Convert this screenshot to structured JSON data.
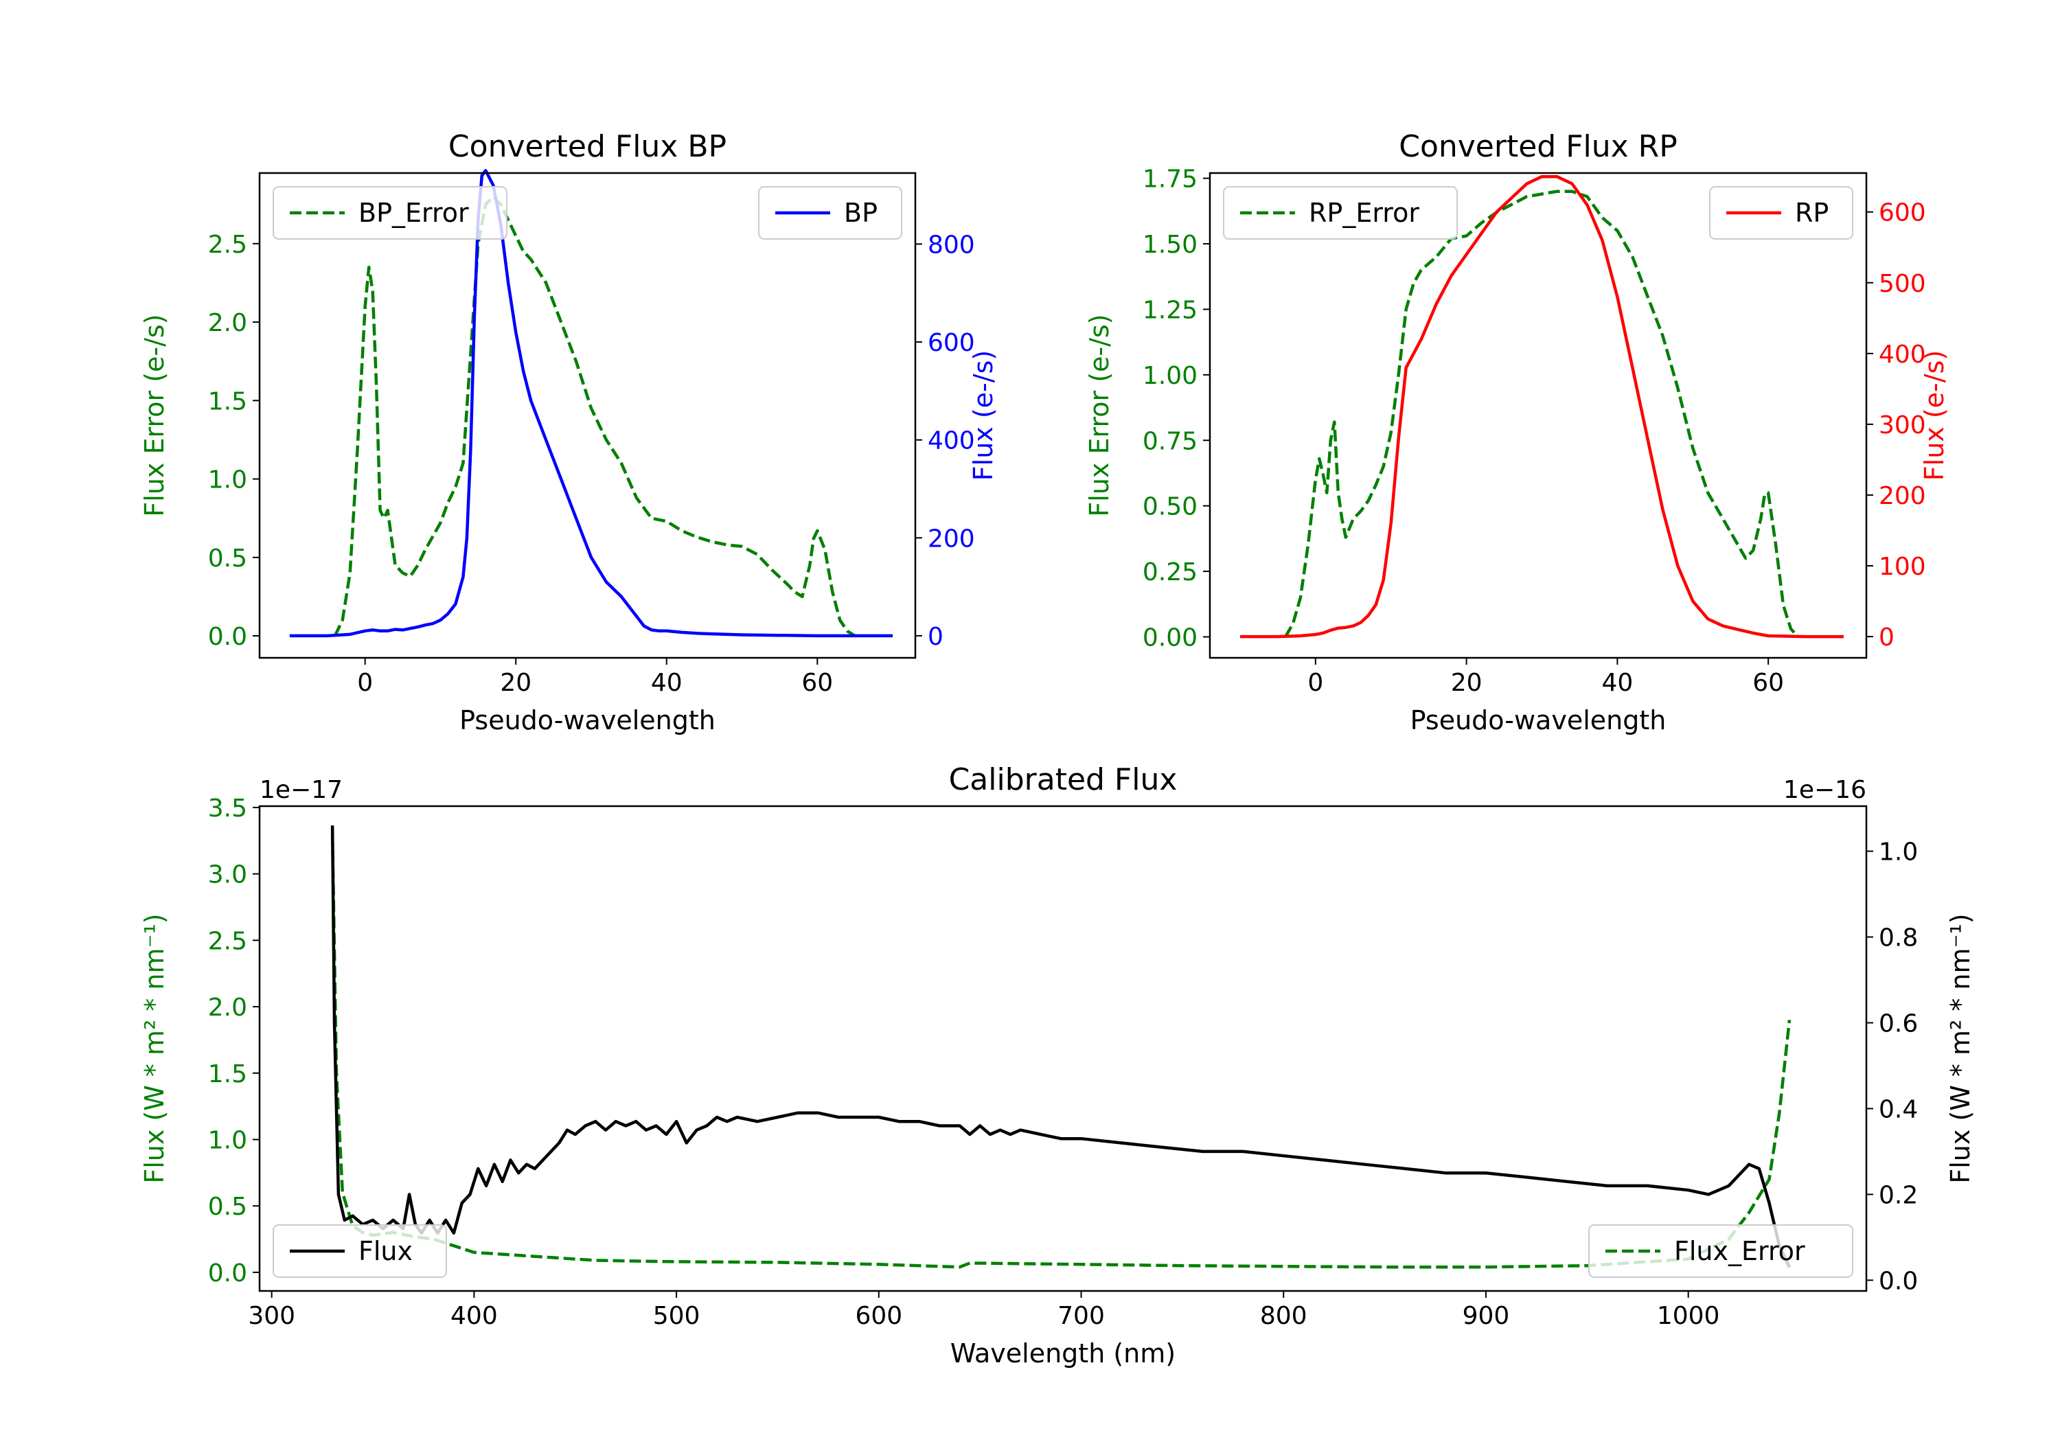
{
  "chart_data": [
    {
      "id": "bp",
      "type": "line",
      "title": "Converted Flux BP",
      "xlabel": "Pseudo-wavelength",
      "xlim": [
        -14,
        73
      ],
      "xticks": [
        0,
        20,
        40,
        60
      ],
      "left_axis": {
        "label": "Flux Error (e-/s)",
        "color": "#008000",
        "ylim": [
          -0.14,
          2.95
        ],
        "ticks": [
          0.0,
          0.5,
          1.0,
          1.5,
          2.0,
          2.5
        ],
        "tick_labels": [
          "0.0",
          "0.5",
          "1.0",
          "1.5",
          "2.0",
          "2.5"
        ]
      },
      "right_axis": {
        "label": "Flux (e-/s)",
        "color": "#0000ff",
        "ylim": [
          -45,
          945
        ],
        "ticks": [
          0,
          200,
          400,
          600,
          800
        ],
        "tick_labels": [
          "0",
          "200",
          "400",
          "600",
          "800"
        ]
      },
      "series": [
        {
          "name": "BP_Error",
          "axis": "left",
          "color": "#008000",
          "dash": true,
          "x": [
            -4,
            -3,
            -2,
            -1,
            0,
            0.5,
            1,
            1.5,
            2,
            2.5,
            3,
            4,
            5,
            6,
            7,
            8,
            10,
            11,
            12,
            13,
            14,
            15,
            16,
            17,
            18,
            19,
            20,
            21,
            22,
            24,
            26,
            28,
            30,
            32,
            34,
            36,
            38,
            40,
            42,
            44,
            46,
            48,
            50,
            52,
            54,
            56,
            57,
            58,
            59,
            59.5,
            60,
            61,
            62,
            63,
            64,
            65
          ],
          "y": [
            0.0,
            0.1,
            0.4,
            1.2,
            2.1,
            2.35,
            2.2,
            1.6,
            0.8,
            0.75,
            0.8,
            0.45,
            0.4,
            0.38,
            0.45,
            0.55,
            0.72,
            0.85,
            0.95,
            1.1,
            1.8,
            2.5,
            2.75,
            2.8,
            2.75,
            2.65,
            2.55,
            2.45,
            2.4,
            2.25,
            2.0,
            1.75,
            1.45,
            1.25,
            1.1,
            0.88,
            0.75,
            0.73,
            0.67,
            0.63,
            0.6,
            0.58,
            0.57,
            0.52,
            0.42,
            0.33,
            0.28,
            0.25,
            0.45,
            0.62,
            0.67,
            0.55,
            0.28,
            0.1,
            0.03,
            0.0
          ]
        },
        {
          "name": "BP",
          "axis": "right",
          "color": "#0000ff",
          "dash": false,
          "x": [
            -10,
            -5,
            -2,
            0,
            1,
            2,
            3,
            4,
            5,
            6,
            7,
            8,
            9,
            10,
            11,
            12,
            13,
            13.5,
            14,
            14.5,
            15,
            15.5,
            16,
            17,
            18,
            19,
            20,
            21,
            22,
            23,
            24,
            25,
            26,
            28,
            30,
            32,
            34,
            36,
            37,
            38,
            39,
            40,
            42,
            44,
            46,
            50,
            55,
            60,
            65,
            70
          ],
          "y": [
            0,
            0,
            3,
            10,
            12,
            10,
            10,
            13,
            12,
            15,
            18,
            22,
            25,
            32,
            45,
            65,
            120,
            200,
            380,
            650,
            850,
            940,
            950,
            920,
            840,
            720,
            620,
            540,
            480,
            440,
            400,
            360,
            320,
            240,
            160,
            110,
            80,
            40,
            20,
            12,
            10,
            10,
            7,
            5,
            4,
            2,
            1,
            0,
            0,
            0
          ]
        }
      ],
      "legends": [
        {
          "position": "upper-left",
          "entries": [
            "BP_Error"
          ]
        },
        {
          "position": "upper-right",
          "entries": [
            "BP"
          ]
        }
      ]
    },
    {
      "id": "rp",
      "type": "line",
      "title": "Converted Flux RP",
      "xlabel": "Pseudo-wavelength",
      "xlim": [
        -14,
        73
      ],
      "xticks": [
        0,
        20,
        40,
        60
      ],
      "left_axis": {
        "label": "Flux Error (e-/s)",
        "color": "#008000",
        "ylim": [
          -0.08,
          1.77
        ],
        "ticks": [
          0.0,
          0.25,
          0.5,
          0.75,
          1.0,
          1.25,
          1.5,
          1.75
        ],
        "tick_labels": [
          "0.00",
          "0.25",
          "0.50",
          "0.75",
          "1.00",
          "1.25",
          "1.50",
          "1.75"
        ]
      },
      "right_axis": {
        "label": "Flux (e-/s)",
        "color": "#ff0000",
        "ylim": [
          -30,
          655
        ],
        "ticks": [
          0,
          100,
          200,
          300,
          400,
          500,
          600
        ],
        "tick_labels": [
          "0",
          "100",
          "200",
          "300",
          "400",
          "500",
          "600"
        ]
      },
      "series": [
        {
          "name": "RP_Error",
          "axis": "left",
          "color": "#008000",
          "dash": true,
          "x": [
            -4,
            -3,
            -2,
            -1,
            0,
            0.5,
            1,
            1.5,
            2,
            2.5,
            3,
            3.5,
            4,
            5,
            6,
            7,
            8,
            9,
            10,
            11,
            12,
            13,
            14,
            16,
            18,
            20,
            22,
            24,
            26,
            28,
            30,
            32,
            34,
            36,
            38,
            40,
            42,
            44,
            46,
            48,
            50,
            52,
            54,
            56,
            57,
            58,
            59,
            59.5,
            60,
            61,
            62,
            63,
            64
          ],
          "y": [
            0.0,
            0.05,
            0.15,
            0.35,
            0.6,
            0.68,
            0.62,
            0.55,
            0.75,
            0.82,
            0.55,
            0.45,
            0.38,
            0.45,
            0.48,
            0.52,
            0.58,
            0.65,
            0.78,
            1.0,
            1.25,
            1.35,
            1.4,
            1.45,
            1.52,
            1.53,
            1.58,
            1.62,
            1.65,
            1.68,
            1.69,
            1.7,
            1.7,
            1.68,
            1.6,
            1.55,
            1.45,
            1.3,
            1.15,
            0.95,
            0.72,
            0.55,
            0.45,
            0.35,
            0.3,
            0.33,
            0.45,
            0.54,
            0.55,
            0.35,
            0.12,
            0.03,
            0.0
          ]
        },
        {
          "name": "RP",
          "axis": "right",
          "color": "#ff0000",
          "dash": false,
          "x": [
            -10,
            -5,
            -2,
            0,
            1,
            2,
            3,
            4,
            5,
            6,
            7,
            8,
            9,
            10,
            11,
            12,
            13,
            14,
            16,
            18,
            20,
            22,
            24,
            26,
            28,
            30,
            32,
            34,
            36,
            38,
            40,
            42,
            44,
            46,
            48,
            50,
            52,
            54,
            56,
            58,
            60,
            65,
            70
          ],
          "y": [
            0,
            0,
            1,
            3,
            5,
            9,
            12,
            13,
            15,
            20,
            30,
            45,
            80,
            160,
            280,
            380,
            400,
            420,
            470,
            510,
            540,
            570,
            600,
            620,
            640,
            650,
            650,
            640,
            610,
            560,
            480,
            380,
            280,
            180,
            100,
            50,
            25,
            15,
            10,
            5,
            1,
            0,
            0
          ]
        }
      ],
      "legends": [
        {
          "position": "upper-left",
          "entries": [
            "RP_Error"
          ]
        },
        {
          "position": "upper-right",
          "entries": [
            "RP"
          ]
        }
      ]
    },
    {
      "id": "cal",
      "type": "line",
      "title": "Calibrated Flux",
      "xlabel": "Wavelength (nm)",
      "xlim": [
        294,
        1088
      ],
      "xticks": [
        300,
        400,
        500,
        600,
        700,
        800,
        900,
        1000
      ],
      "left_axis": {
        "label": "Flux (W * m² * nm⁻¹)",
        "color": "#008000",
        "ylim": [
          -0.14,
          3.51
        ],
        "ticks": [
          0.0,
          0.5,
          1.0,
          1.5,
          2.0,
          2.5,
          3.0,
          3.5
        ],
        "tick_labels": [
          "0.0",
          "0.5",
          "1.0",
          "1.5",
          "2.0",
          "2.5",
          "3.0",
          "3.5"
        ],
        "offset": "1e−17"
      },
      "right_axis": {
        "label": "Flux (W * m² * nm⁻¹)",
        "color": "#000000",
        "ylim": [
          -0.025,
          1.105
        ],
        "ticks": [
          0.0,
          0.2,
          0.4,
          0.6,
          0.8,
          1.0
        ],
        "tick_labels": [
          "0.0",
          "0.2",
          "0.4",
          "0.6",
          "0.8",
          "1.0"
        ],
        "offset": "1e−16"
      },
      "series": [
        {
          "name": "Flux_Error",
          "axis": "left",
          "color": "#008000",
          "dash": true,
          "x": [
            330,
            332,
            335,
            340,
            345,
            350,
            360,
            370,
            380,
            390,
            400,
            410,
            420,
            430,
            440,
            450,
            460,
            480,
            500,
            550,
            600,
            640,
            645,
            700,
            750,
            800,
            850,
            900,
            950,
            1000,
            1020,
            1030,
            1040,
            1045,
            1050
          ],
          "y": [
            3.3,
            1.5,
            0.6,
            0.35,
            0.3,
            0.28,
            0.3,
            0.27,
            0.25,
            0.2,
            0.15,
            0.14,
            0.13,
            0.12,
            0.11,
            0.1,
            0.09,
            0.085,
            0.08,
            0.075,
            0.06,
            0.04,
            0.07,
            0.06,
            0.05,
            0.045,
            0.04,
            0.04,
            0.05,
            0.1,
            0.25,
            0.45,
            0.7,
            1.2,
            1.9
          ]
        },
        {
          "name": "Flux",
          "axis": "right",
          "color": "#000000",
          "dash": false,
          "x": [
            330,
            331,
            333,
            336,
            340,
            345,
            350,
            355,
            360,
            365,
            368,
            371,
            374,
            378,
            382,
            386,
            390,
            394,
            398,
            402,
            406,
            410,
            414,
            418,
            422,
            426,
            430,
            434,
            438,
            442,
            446,
            450,
            455,
            460,
            465,
            470,
            475,
            480,
            485,
            490,
            495,
            500,
            505,
            510,
            515,
            520,
            525,
            530,
            540,
            550,
            560,
            570,
            580,
            590,
            600,
            610,
            620,
            630,
            640,
            645,
            650,
            655,
            660,
            665,
            670,
            680,
            690,
            700,
            720,
            740,
            760,
            780,
            800,
            820,
            840,
            860,
            880,
            900,
            920,
            940,
            960,
            980,
            1000,
            1010,
            1020,
            1030,
            1035,
            1040,
            1045,
            1050
          ],
          "y": [
            1.06,
            0.6,
            0.2,
            0.14,
            0.15,
            0.13,
            0.14,
            0.12,
            0.14,
            0.12,
            0.2,
            0.13,
            0.11,
            0.14,
            0.11,
            0.14,
            0.11,
            0.18,
            0.2,
            0.26,
            0.22,
            0.27,
            0.23,
            0.28,
            0.25,
            0.27,
            0.26,
            0.28,
            0.3,
            0.32,
            0.35,
            0.34,
            0.36,
            0.37,
            0.35,
            0.37,
            0.36,
            0.37,
            0.35,
            0.36,
            0.34,
            0.37,
            0.32,
            0.35,
            0.36,
            0.38,
            0.37,
            0.38,
            0.37,
            0.38,
            0.39,
            0.39,
            0.38,
            0.38,
            0.38,
            0.37,
            0.37,
            0.36,
            0.36,
            0.34,
            0.36,
            0.34,
            0.35,
            0.34,
            0.35,
            0.34,
            0.33,
            0.33,
            0.32,
            0.31,
            0.3,
            0.3,
            0.29,
            0.28,
            0.27,
            0.26,
            0.25,
            0.25,
            0.24,
            0.23,
            0.22,
            0.22,
            0.21,
            0.2,
            0.22,
            0.27,
            0.26,
            0.18,
            0.08,
            0.03
          ]
        }
      ],
      "legends": [
        {
          "position": "lower-left",
          "entries": [
            "Flux"
          ]
        },
        {
          "position": "lower-right",
          "entries": [
            "Flux_Error"
          ]
        }
      ]
    }
  ]
}
